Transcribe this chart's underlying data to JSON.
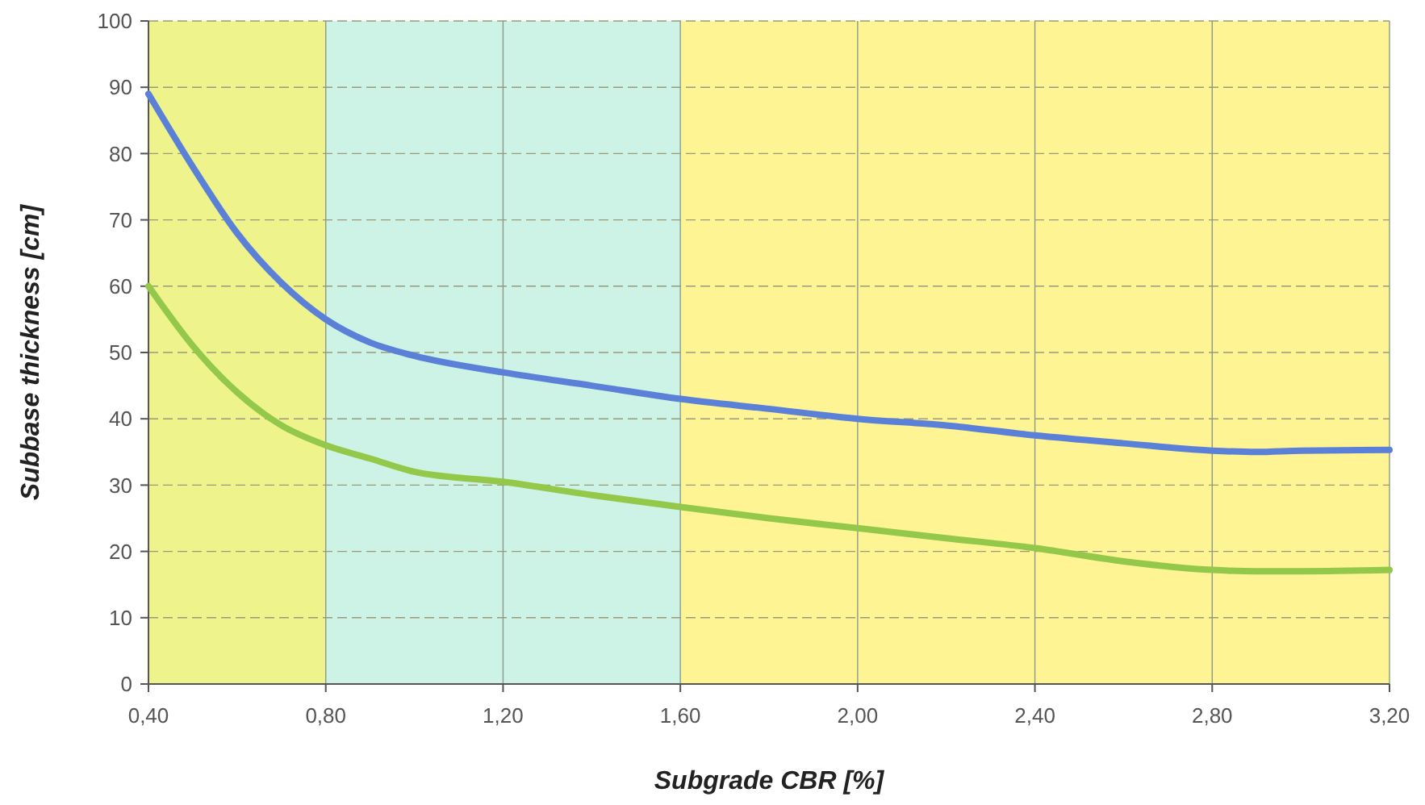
{
  "chart_data": {
    "type": "line",
    "xlabel": "Subgrade CBR [%]",
    "ylabel": "Subbase thickness [cm]",
    "xlim": [
      0.4,
      3.2
    ],
    "xticks": [
      {
        "value": 0.4,
        "label": "0,40"
      },
      {
        "value": 0.8,
        "label": "0,80"
      },
      {
        "value": 1.2,
        "label": "1,20"
      },
      {
        "value": 1.6,
        "label": "1,60"
      },
      {
        "value": 2.0,
        "label": "2,00"
      },
      {
        "value": 2.4,
        "label": "2,40"
      },
      {
        "value": 2.8,
        "label": "2,80"
      },
      {
        "value": 3.2,
        "label": "3,20"
      }
    ],
    "ylim": [
      0,
      100
    ],
    "yticks": [
      0,
      10,
      20,
      30,
      40,
      50,
      60,
      70,
      80,
      90,
      100
    ],
    "x": [
      0.4,
      0.5,
      0.6,
      0.7,
      0.8,
      0.9,
      1.0,
      1.2,
      1.4,
      1.6,
      1.8,
      2.0,
      2.2,
      2.4,
      2.6,
      2.8,
      2.9,
      3.0,
      3.2
    ],
    "series": [
      {
        "color": "#5b80d8",
        "values": [
          89,
          78,
          68,
          60.5,
          55,
          51.5,
          49.5,
          47,
          45,
          43,
          41.5,
          40,
          39,
          37.5,
          36.3,
          35.2,
          35,
          35.2,
          35.3
        ]
      },
      {
        "color": "#93c84a",
        "values": [
          60,
          51,
          44,
          39,
          36,
          34,
          32,
          30.5,
          28.5,
          26.7,
          25,
          23.5,
          22,
          20.5,
          18.5,
          17.2,
          17,
          17,
          17.2
        ]
      }
    ],
    "bands": [
      {
        "axis": "x",
        "from": 0.4,
        "to": 0.8,
        "color": "#eef38c"
      },
      {
        "axis": "x",
        "from": 0.8,
        "to": 1.6,
        "color": "#cdf3e6"
      },
      {
        "axis": "x",
        "from": 1.6,
        "to": 3.2,
        "color": "#fff494"
      }
    ],
    "grid": true,
    "line_style": "solid",
    "marker": "none"
  }
}
